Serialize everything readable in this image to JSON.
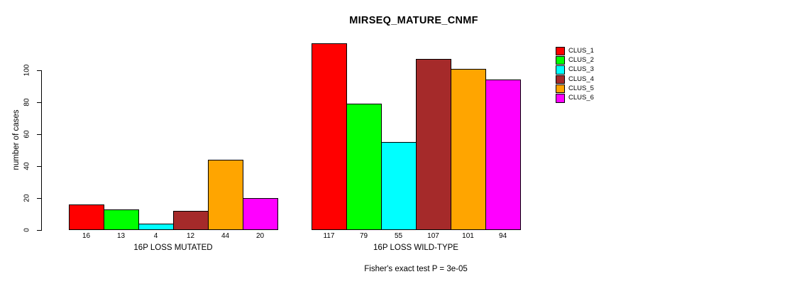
{
  "chart_data": {
    "type": "bar",
    "title": "MIRSEQ_MATURE_CNMF",
    "ylabel": "number of cases",
    "footer": "Fisher's exact test P = 3e-05",
    "p_value_text": "P = 3e-05",
    "categories": [
      "16P LOSS MUTATED",
      "16P LOSS WILD-TYPE"
    ],
    "series": [
      {
        "name": "CLUS_1",
        "color": "#FF0000",
        "values": [
          16,
          117
        ]
      },
      {
        "name": "CLUS_2",
        "color": "#00FF00",
        "values": [
          13,
          79
        ]
      },
      {
        "name": "CLUS_3",
        "color": "#00FFFF",
        "values": [
          4,
          55
        ]
      },
      {
        "name": "CLUS_4",
        "color": "#A52A2A",
        "values": [
          12,
          107
        ]
      },
      {
        "name": "CLUS_5",
        "color": "#FFA500",
        "values": [
          44,
          101
        ]
      },
      {
        "name": "CLUS_6",
        "color": "#FF00FF",
        "values": [
          20,
          94
        ]
      }
    ],
    "y_ticks": [
      0,
      20,
      40,
      60,
      80,
      100
    ],
    "ylim": [
      0,
      117
    ],
    "grid": false,
    "legend_position": "right",
    "bar_labels_shown": true,
    "axis_color": "#000000",
    "background_color": "#FFFFFF"
  }
}
